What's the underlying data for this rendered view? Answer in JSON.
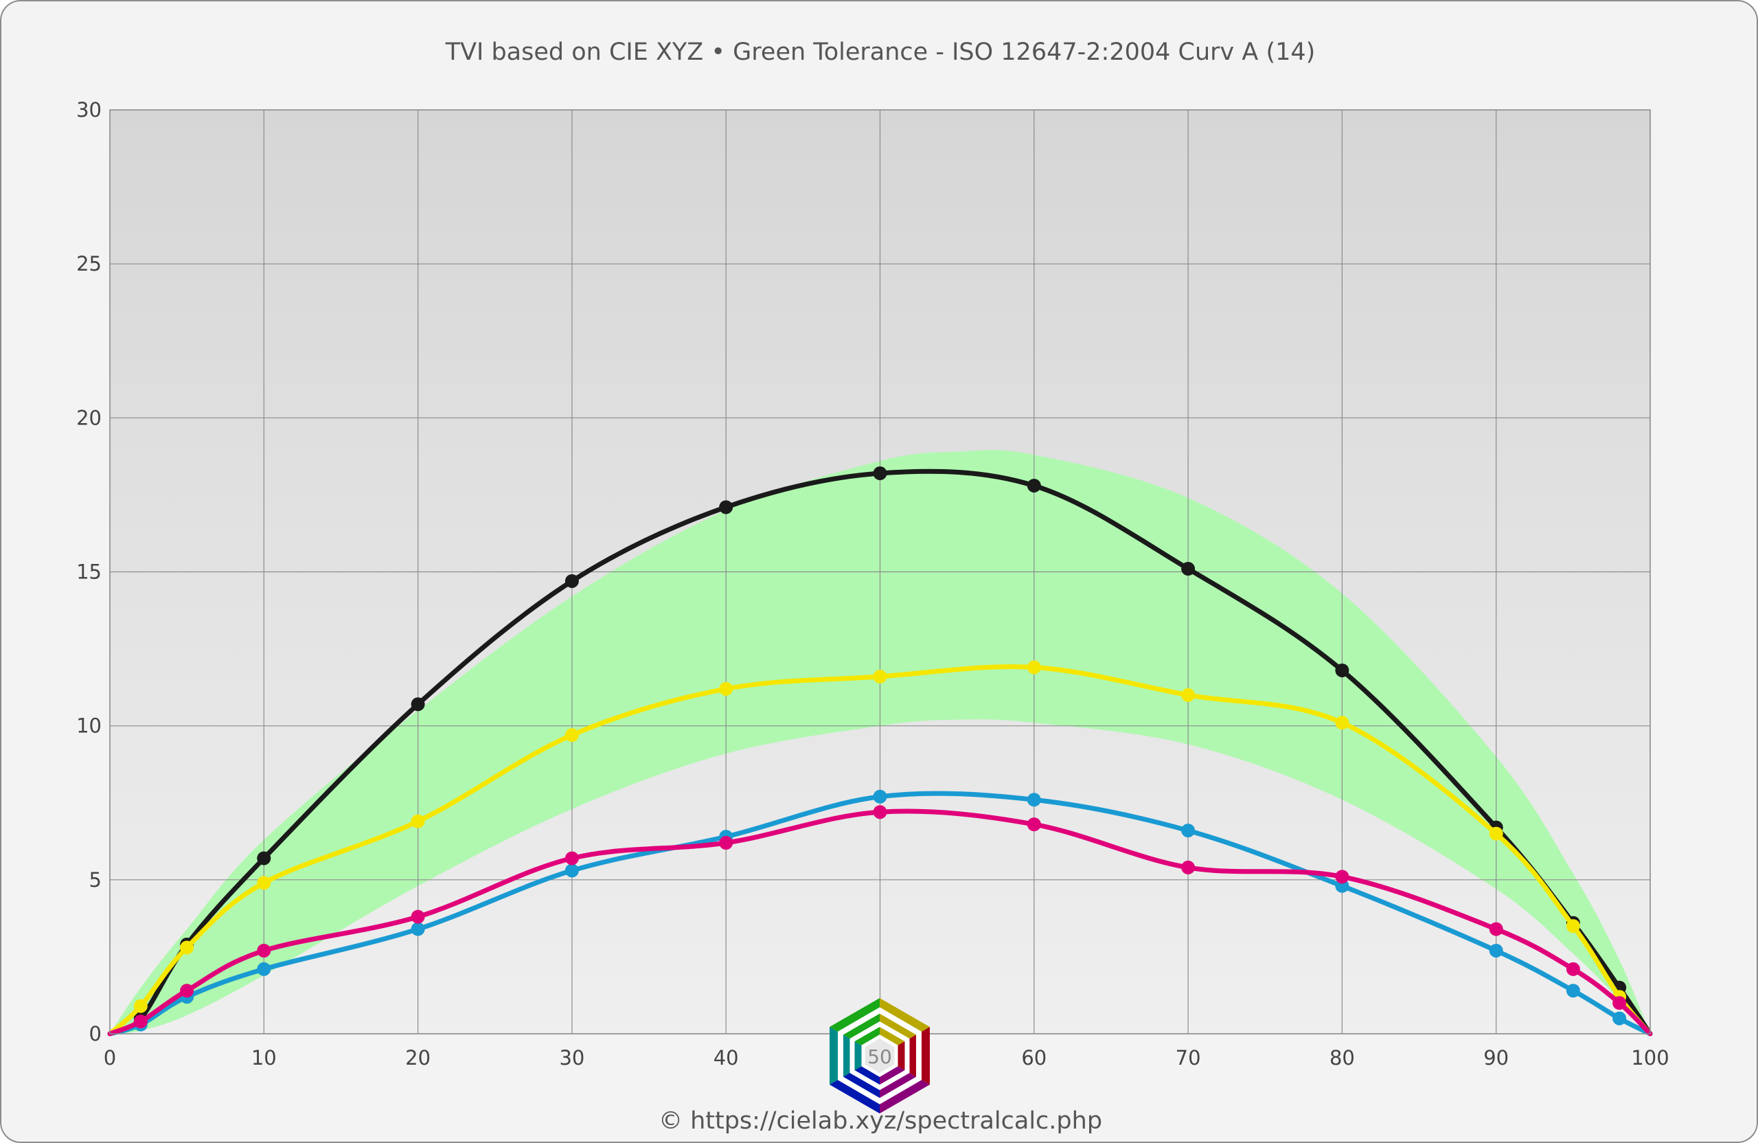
{
  "title": "TVI based on CIE XYZ  •  Green Tolerance - ISO 12647-2:2004 Curv A (14)",
  "footer": "© https://cielab.xyz/spectralcalc.php",
  "logo": {
    "name": "cielab-hexagon-logo",
    "label": "50"
  },
  "colors": {
    "frame": "#f3f3f3",
    "plot_top": "#d6d6d6",
    "plot_bottom": "#efefef",
    "grid": "#8c8c8c",
    "tolerance_band": "#b0f8b0"
  },
  "chart_data": {
    "type": "line",
    "title": "TVI based on CIE XYZ  •  Green Tolerance - ISO 12647-2:2004 Curv A (14)",
    "xlabel": "",
    "ylabel": "",
    "xlim": [
      0,
      100
    ],
    "ylim": [
      0,
      30
    ],
    "xticks": [
      "0",
      "10",
      "20",
      "30",
      "40",
      "50",
      "60",
      "70",
      "80",
      "90",
      "100"
    ],
    "yticks": [
      "0",
      "5",
      "10",
      "15",
      "20",
      "25",
      "30"
    ],
    "grid": true,
    "legend": "none",
    "tolerance_band": {
      "color": "#b0f8b0",
      "x": [
        0,
        2,
        5,
        10,
        20,
        30,
        40,
        50,
        55,
        60,
        70,
        80,
        90,
        95,
        98,
        100
      ],
      "upper": [
        0,
        1.5,
        3.4,
        6.3,
        10.5,
        14.2,
        17.0,
        18.6,
        18.9,
        18.8,
        17.4,
        14.3,
        9.0,
        5.2,
        2.4,
        0
      ],
      "lower": [
        0,
        0.1,
        0.6,
        1.9,
        4.8,
        7.3,
        9.1,
        10.0,
        10.2,
        10.1,
        9.4,
        7.6,
        4.7,
        2.6,
        1.1,
        0
      ]
    },
    "x": [
      0,
      2,
      5,
      10,
      20,
      30,
      40,
      50,
      60,
      70,
      80,
      90,
      95,
      98,
      100
    ],
    "series": [
      {
        "color": "#1a1a1a",
        "values": [
          0,
          0.5,
          2.9,
          5.7,
          10.7,
          14.7,
          17.1,
          18.2,
          17.8,
          15.1,
          11.8,
          6.7,
          3.6,
          1.5,
          0
        ]
      },
      {
        "color": "#f5e600",
        "values": [
          0,
          0.9,
          2.8,
          4.9,
          6.9,
          9.7,
          11.2,
          11.6,
          11.9,
          11.0,
          10.1,
          6.5,
          3.5,
          1.2,
          0
        ]
      },
      {
        "color": "#1a9ad2",
        "values": [
          0,
          0.3,
          1.2,
          2.1,
          3.4,
          5.3,
          6.4,
          7.7,
          7.6,
          6.6,
          4.8,
          2.7,
          1.4,
          0.5,
          0
        ]
      },
      {
        "color": "#e0007a",
        "values": [
          0,
          0.4,
          1.4,
          2.7,
          3.8,
          5.7,
          6.2,
          7.2,
          6.8,
          5.4,
          5.1,
          3.4,
          2.1,
          1.0,
          0
        ]
      }
    ]
  }
}
